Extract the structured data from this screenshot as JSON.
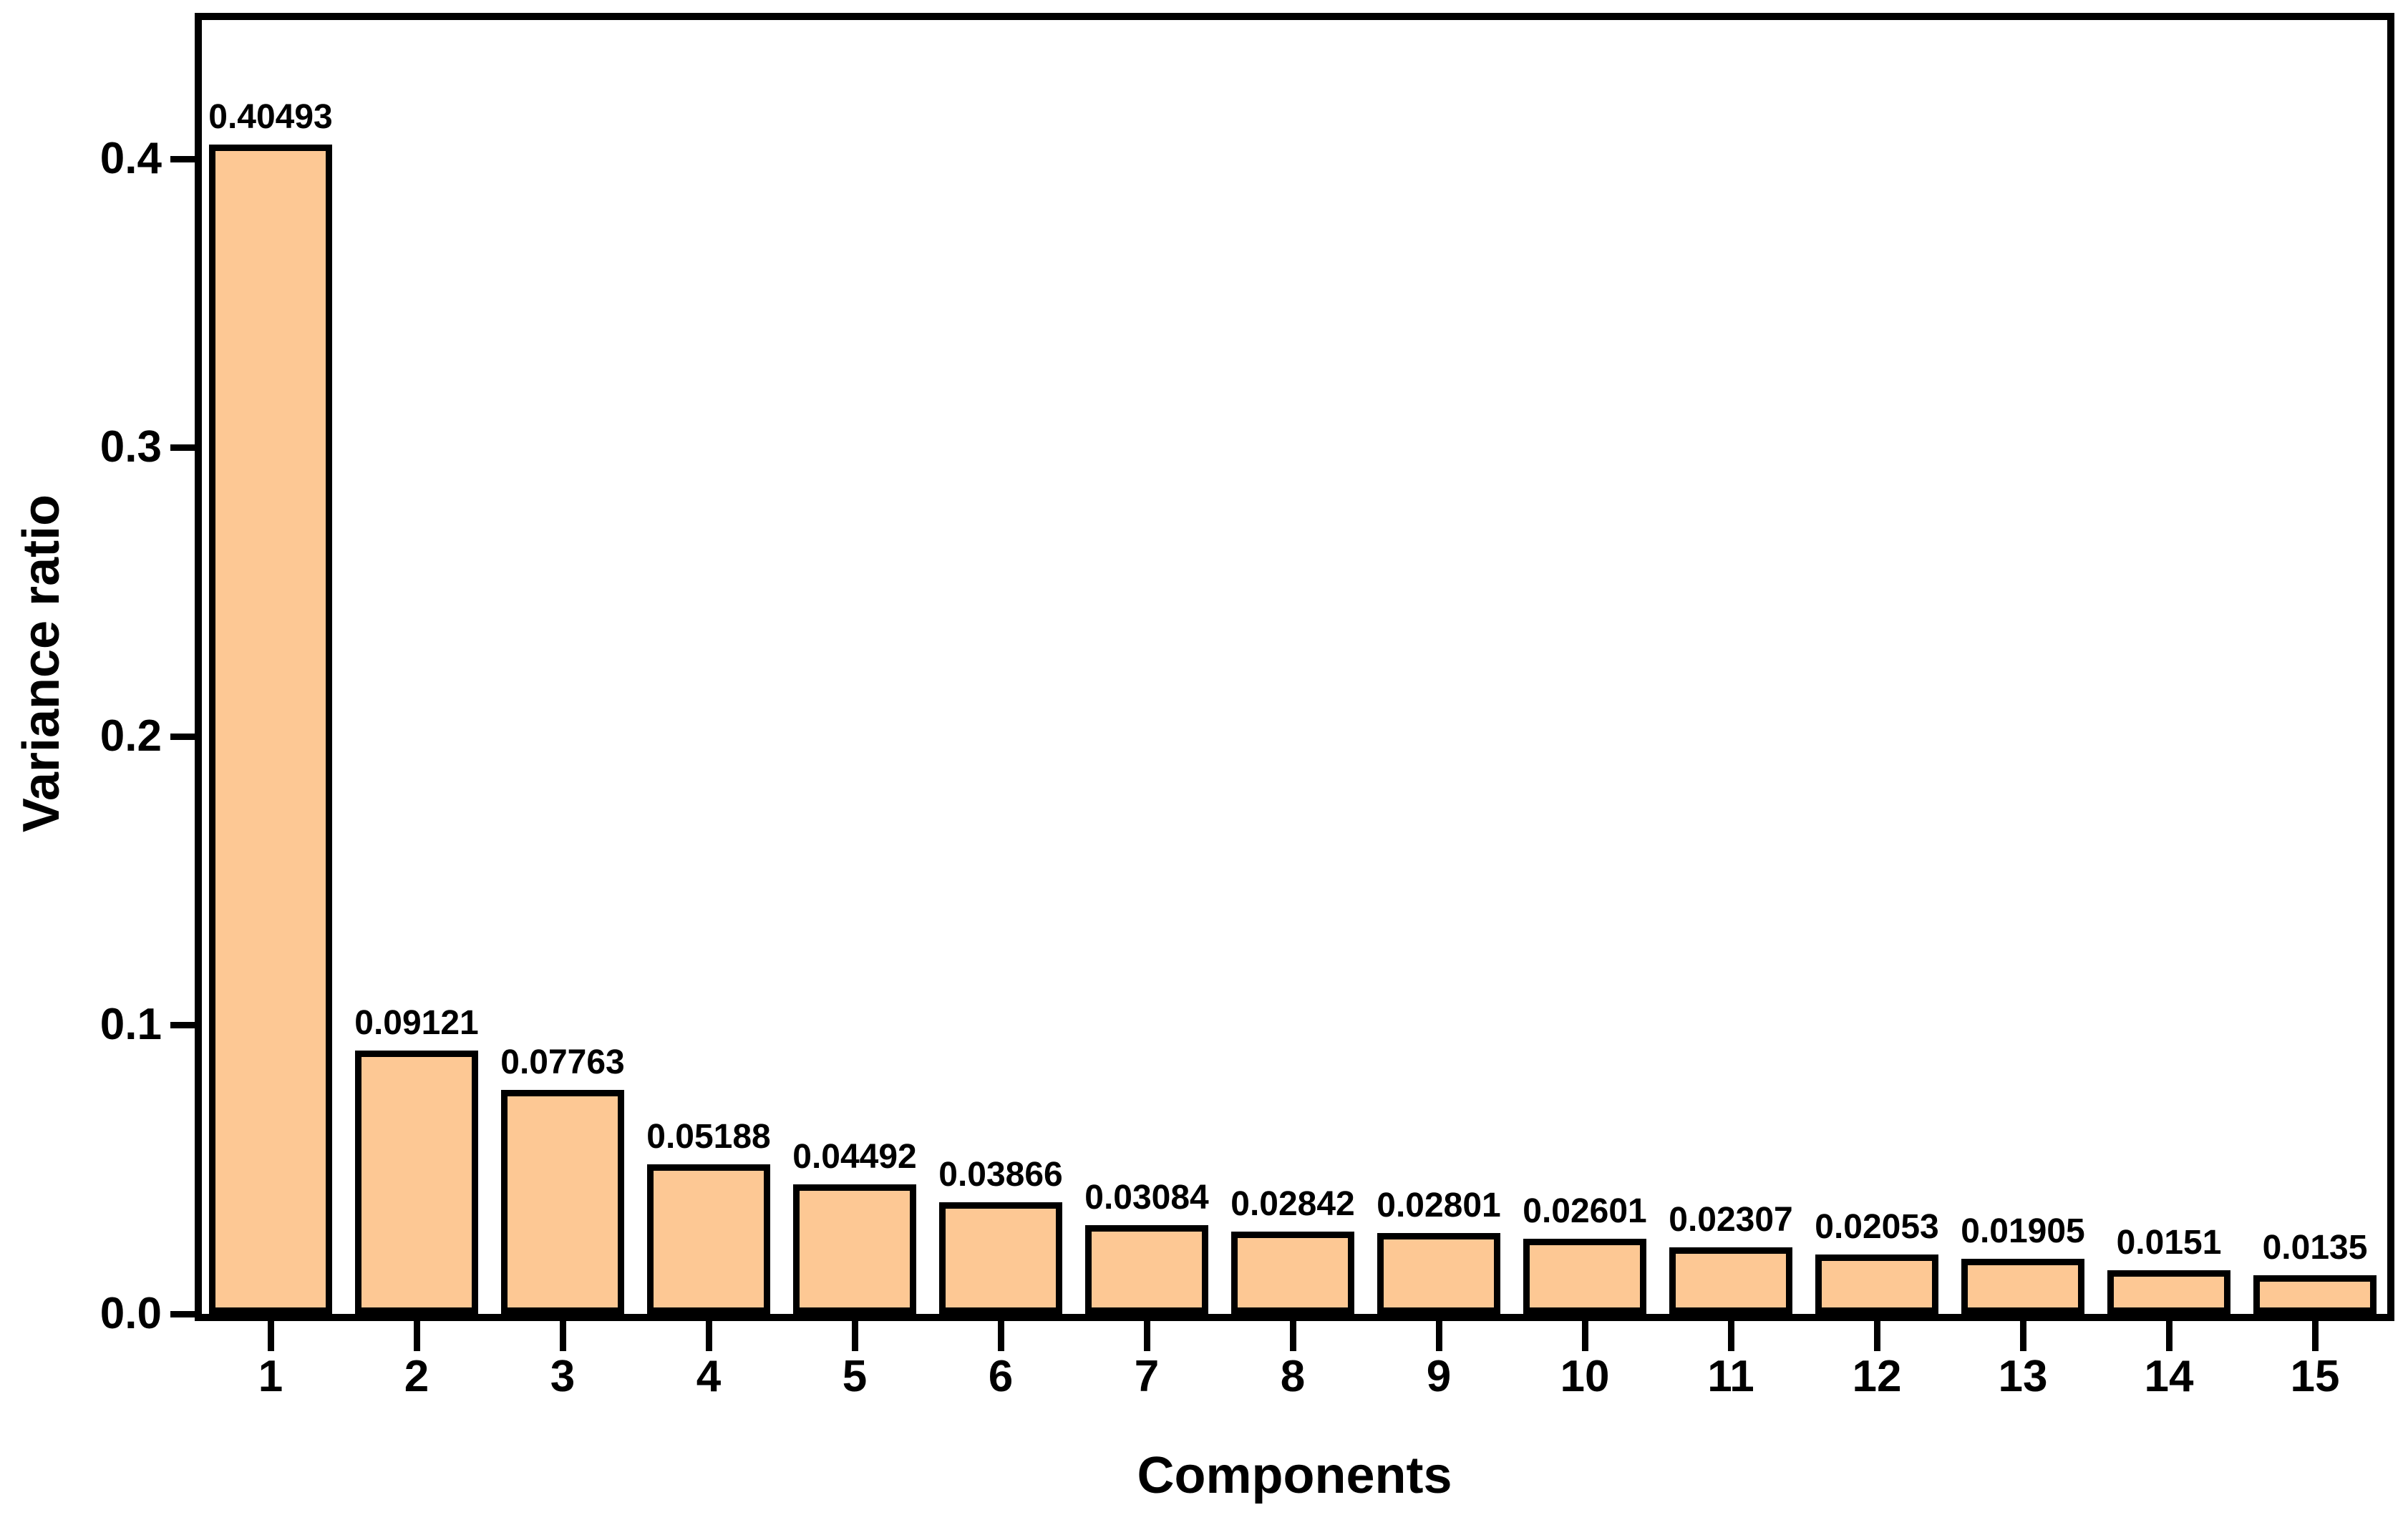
{
  "chart_data": {
    "type": "bar",
    "title": "",
    "xlabel": "Components",
    "ylabel": "Variance ratio",
    "categories": [
      "1",
      "2",
      "3",
      "4",
      "5",
      "6",
      "7",
      "8",
      "9",
      "10",
      "11",
      "12",
      "13",
      "14",
      "15"
    ],
    "values": [
      0.40493,
      0.09121,
      0.07763,
      0.05188,
      0.04492,
      0.03866,
      0.03084,
      0.02842,
      0.02801,
      0.02601,
      0.02307,
      0.02053,
      0.01905,
      0.0151,
      0.0135
    ],
    "bar_labels": [
      "0.40493",
      "0.09121",
      "0.07763",
      "0.05188",
      "0.04492",
      "0.03866",
      "0.03084",
      "0.02842",
      "0.02801",
      "0.02601",
      "0.02307",
      "0.02053",
      "0.01905",
      "0.0151",
      "0.0135"
    ],
    "y_tick_labels": [
      "0.0",
      "0.1",
      "0.2",
      "0.3",
      "0.4"
    ],
    "ylim": [
      0,
      0.448
    ],
    "grid": false,
    "legend": null,
    "legend_position": "none",
    "colors": {
      "bar_fill": "#FDC894",
      "bar_edge": "#000000",
      "axis": "#000000",
      "background": "#FFFFFF",
      "text": "#000000"
    }
  }
}
